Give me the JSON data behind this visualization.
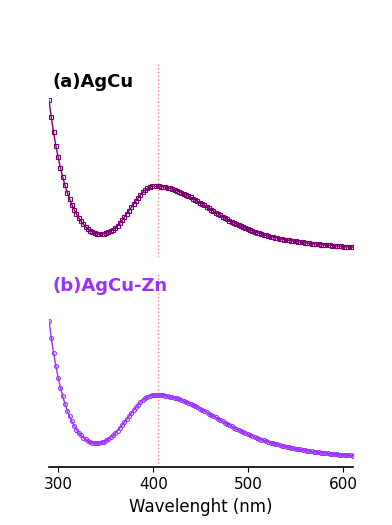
{
  "xlabel": "Wavelenght (nm)",
  "xlim": [
    290,
    610
  ],
  "xticks": [
    300,
    400,
    500,
    600
  ],
  "dotted_line_x": 405,
  "label_a": "(a)AgCu",
  "label_b": "(b)AgCu-Zn",
  "color_a": "#7B0070",
  "color_b": "#9B30FF",
  "background": "#ffffff",
  "figsize": [
    3.92,
    5.25
  ],
  "dpi": 100
}
